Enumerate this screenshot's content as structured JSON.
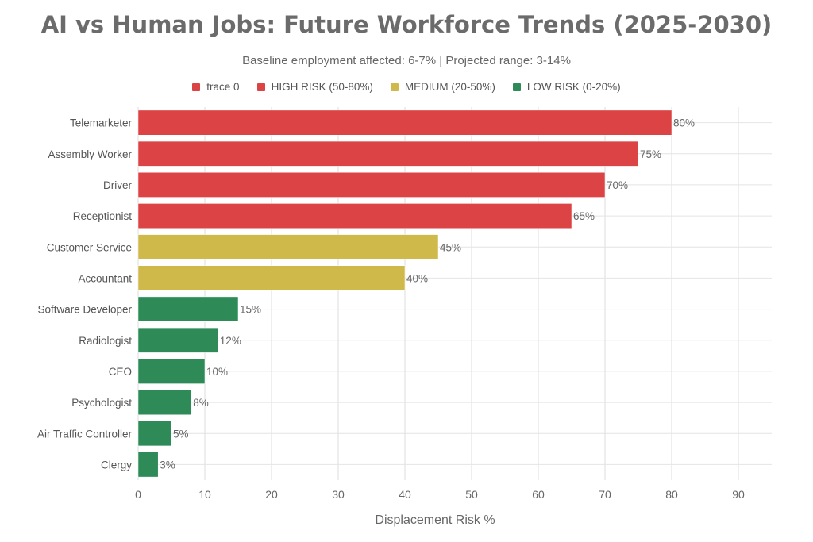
{
  "chart_data": {
    "type": "bar",
    "orientation": "horizontal",
    "title": "AI vs Human Jobs: Future Workforce Trends (2025-2030)",
    "subtitle": "Baseline employment affected: 6-7% | Projected range: 3-14%",
    "xlabel": "Displacement Risk %",
    "xlim": [
      0,
      95
    ],
    "xticks": [
      0,
      10,
      20,
      30,
      40,
      50,
      60,
      70,
      80,
      90
    ],
    "grid": true,
    "legend_position": "top",
    "legend": [
      {
        "label": "trace 0",
        "color": "#dc4344"
      },
      {
        "label": "HIGH RISK (50-80%)",
        "color": "#dc4344"
      },
      {
        "label": "MEDIUM (20-50%)",
        "color": "#cfb94b"
      },
      {
        "label": "LOW RISK (0-20%)",
        "color": "#2e8b57"
      }
    ],
    "categories": [
      "Telemarketer",
      "Assembly Worker",
      "Driver",
      "Receptionist",
      "Customer Service",
      "Accountant",
      "Software Developer",
      "Radiologist",
      "CEO",
      "Psychologist",
      "Air Traffic Controller",
      "Clergy"
    ],
    "values": [
      80,
      75,
      70,
      65,
      45,
      40,
      15,
      12,
      10,
      8,
      5,
      3
    ],
    "data_labels": [
      "80%",
      "75%",
      "70%",
      "65%",
      "45%",
      "40%",
      "15%",
      "12%",
      "10%",
      "8%",
      "5%",
      "3%"
    ],
    "bar_colors": [
      "#dc4344",
      "#dc4344",
      "#dc4344",
      "#dc4344",
      "#cfb94b",
      "#cfb94b",
      "#2e8b57",
      "#2e8b57",
      "#2e8b57",
      "#2e8b57",
      "#2e8b57",
      "#2e8b57"
    ]
  }
}
